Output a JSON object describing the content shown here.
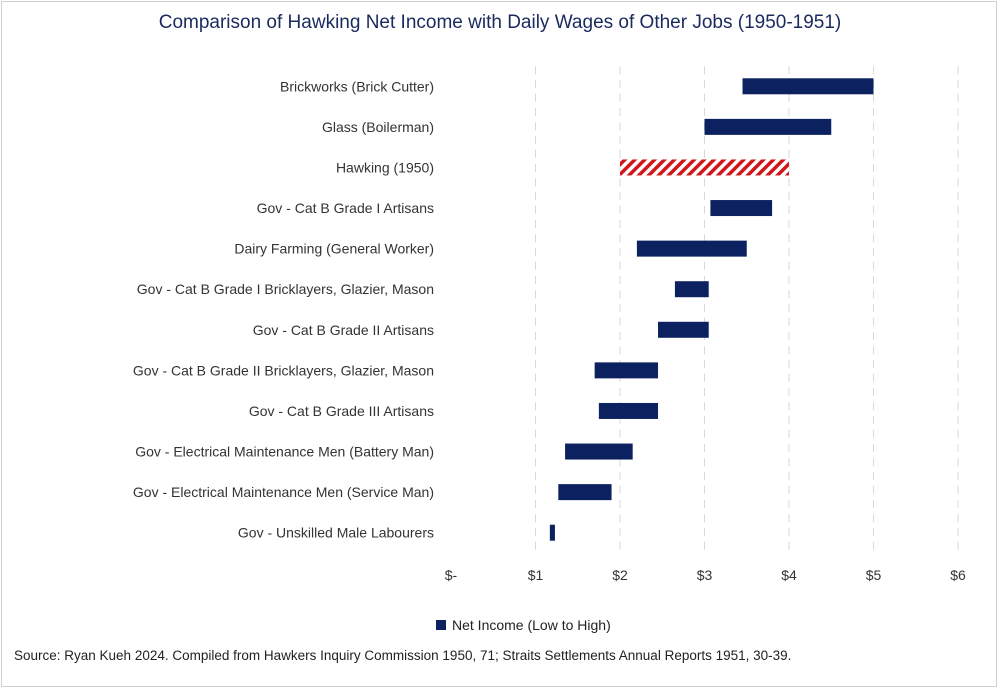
{
  "chart_data": {
    "type": "bar",
    "orientation": "horizontal-floating",
    "title": "Comparison of Hawking Net Income with Daily Wages of Other Jobs (1950-1951)",
    "xlabel": "",
    "ylabel": "",
    "xlim": [
      0,
      6
    ],
    "x_ticks": [
      {
        "value": 0,
        "label": "$-"
      },
      {
        "value": 1,
        "label": "$1"
      },
      {
        "value": 2,
        "label": "$2"
      },
      {
        "value": 3,
        "label": "$3"
      },
      {
        "value": 4,
        "label": "$4"
      },
      {
        "value": 5,
        "label": "$5"
      },
      {
        "value": 6,
        "label": "$6"
      }
    ],
    "grid": "vertical dashed",
    "legend_position": "bottom",
    "series": [
      {
        "name": "Net Income (Low to High)",
        "color": "#0c2160",
        "categories": [
          "Brickworks (Brick Cutter)",
          "Glass (Boilerman)",
          "Hawking (1950)",
          "Gov - Cat B Grade I Artisans",
          "Dairy Farming (General Worker)",
          "Gov - Cat B Grade I Bricklayers, Glazier, Mason",
          "Gov - Cat B Grade II Artisans",
          "Gov - Cat B Grade II Bricklayers, Glazier, Mason",
          "Gov - Cat B Grade III Artisans",
          "Gov - Electrical Maintenance Men (Battery Man)",
          "Gov - Electrical Maintenance Men (Service Man)",
          "Gov - Unskilled Male Labourers"
        ],
        "low": [
          3.45,
          3.0,
          2.0,
          3.07,
          2.2,
          2.65,
          2.45,
          1.7,
          1.75,
          1.35,
          1.27,
          1.17
        ],
        "high": [
          5.0,
          4.5,
          4.0,
          3.8,
          3.5,
          3.05,
          3.05,
          2.45,
          2.45,
          2.15,
          1.9,
          1.23
        ],
        "highlight": [
          "no",
          "no",
          "yes",
          "no",
          "no",
          "no",
          "no",
          "no",
          "no",
          "no",
          "no",
          "no"
        ],
        "highlight_color": "#d0161b"
      }
    ]
  },
  "source_note": "Source: Ryan Kueh 2024. Compiled from Hawkers Inquiry Commission 1950, 71; Straits Settlements Annual Reports 1951, 30-39."
}
